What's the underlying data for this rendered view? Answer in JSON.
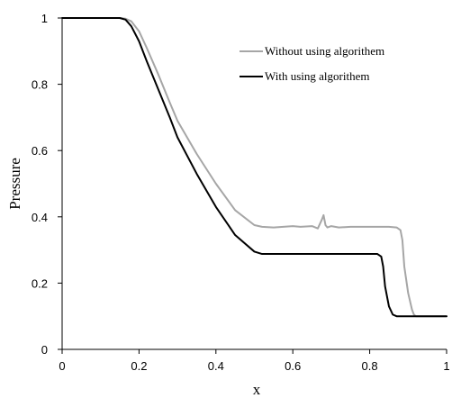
{
  "chart_data": {
    "type": "line",
    "title": "",
    "xlabel": "x",
    "ylabel": "Pressure",
    "xlim": [
      0,
      1
    ],
    "ylim": [
      0,
      1
    ],
    "xticks": [
      0,
      0.2,
      0.4,
      0.6,
      0.8,
      1
    ],
    "xtick_labels": [
      "0",
      "0.2",
      "0.4",
      "0.6",
      "0.8",
      "1"
    ],
    "yticks": [
      0,
      0.2,
      0.4,
      0.6,
      0.8,
      1
    ],
    "ytick_labels": [
      "0",
      "0.2",
      "0.4",
      "0.6",
      "0.8",
      "1"
    ],
    "grid": false,
    "legend_position": "top-right",
    "series": [
      {
        "name": "Without using algorithem",
        "color": "#a6a6a6",
        "x": [
          0,
          0.15,
          0.165,
          0.18,
          0.2,
          0.22,
          0.25,
          0.28,
          0.3,
          0.35,
          0.4,
          0.45,
          0.5,
          0.52,
          0.55,
          0.6,
          0.62,
          0.65,
          0.665,
          0.675,
          0.68,
          0.685,
          0.69,
          0.7,
          0.72,
          0.75,
          0.8,
          0.85,
          0.87,
          0.88,
          0.885,
          0.89,
          0.9,
          0.91,
          0.915,
          0.92,
          0.94,
          1.0
        ],
        "y": [
          1,
          1,
          0.998,
          0.99,
          0.96,
          0.91,
          0.83,
          0.745,
          0.69,
          0.59,
          0.5,
          0.42,
          0.375,
          0.37,
          0.368,
          0.372,
          0.37,
          0.372,
          0.365,
          0.39,
          0.405,
          0.375,
          0.368,
          0.372,
          0.368,
          0.37,
          0.37,
          0.37,
          0.368,
          0.36,
          0.33,
          0.25,
          0.17,
          0.12,
          0.105,
          0.1,
          0.1,
          0.1
        ]
      },
      {
        "name": "With using algorithem",
        "color": "#000000",
        "x": [
          0,
          0.15,
          0.165,
          0.18,
          0.2,
          0.22,
          0.25,
          0.28,
          0.3,
          0.35,
          0.4,
          0.45,
          0.5,
          0.52,
          0.55,
          0.6,
          0.7,
          0.8,
          0.82,
          0.83,
          0.835,
          0.84,
          0.85,
          0.86,
          0.87,
          0.9,
          1.0
        ],
        "y": [
          1,
          1,
          0.995,
          0.975,
          0.93,
          0.87,
          0.785,
          0.7,
          0.64,
          0.53,
          0.43,
          0.345,
          0.295,
          0.288,
          0.288,
          0.288,
          0.288,
          0.288,
          0.288,
          0.28,
          0.25,
          0.19,
          0.13,
          0.105,
          0.1,
          0.1,
          0.1
        ]
      }
    ]
  }
}
